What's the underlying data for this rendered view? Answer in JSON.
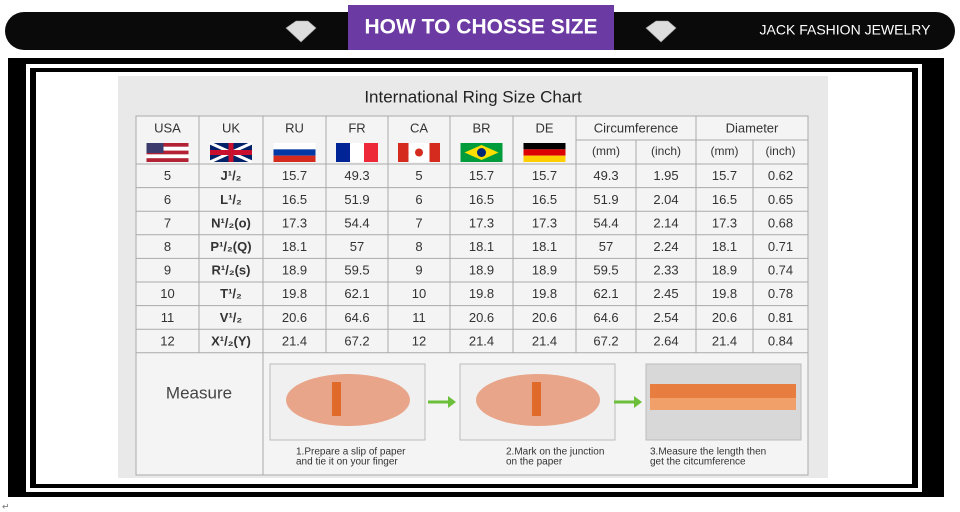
{
  "header": {
    "title": "HOW TO CHOSSE SIZE",
    "brand": "JACK FASHION JEWELRY"
  },
  "chart": {
    "title": "International Ring Size Chart",
    "columns": [
      "USA",
      "UK",
      "RU",
      "FR",
      "CA",
      "BR",
      "DE"
    ],
    "groups": [
      "Circumference",
      "Diameter"
    ],
    "units": [
      "(mm)",
      "(inch)",
      "(mm)",
      "(inch)"
    ],
    "rows": [
      [
        "5",
        "J¹/₂",
        "15.7",
        "49.3",
        "5",
        "15.7",
        "15.7",
        "49.3",
        "1.95",
        "15.7",
        "0.62"
      ],
      [
        "6",
        "L¹/₂",
        "16.5",
        "51.9",
        "6",
        "16.5",
        "16.5",
        "51.9",
        "2.04",
        "16.5",
        "0.65"
      ],
      [
        "7",
        "N¹/₂(o)",
        "17.3",
        "54.4",
        "7",
        "17.3",
        "17.3",
        "54.4",
        "2.14",
        "17.3",
        "0.68"
      ],
      [
        "8",
        "P¹/₂(Q)",
        "18.1",
        "57",
        "8",
        "18.1",
        "18.1",
        "57",
        "2.24",
        "18.1",
        "0.71"
      ],
      [
        "9",
        "R¹/₂(s)",
        "18.9",
        "59.5",
        "9",
        "18.9",
        "18.9",
        "59.5",
        "2.33",
        "18.9",
        "0.74"
      ],
      [
        "10",
        "T¹/₂",
        "19.8",
        "62.1",
        "10",
        "19.8",
        "19.8",
        "62.1",
        "2.45",
        "19.8",
        "0.78"
      ],
      [
        "11",
        "V¹/₂",
        "20.6",
        "64.6",
        "11",
        "20.6",
        "20.6",
        "64.6",
        "2.54",
        "20.6",
        "0.81"
      ],
      [
        "12",
        "X¹/₂(Y)",
        "21.4",
        "67.2",
        "12",
        "21.4",
        "21.4",
        "67.2",
        "2.64",
        "21.4",
        "0.84"
      ]
    ],
    "measure": {
      "label": "Measure",
      "steps": [
        [
          "1.Prepare a slip of paper",
          "and tie it on your finger"
        ],
        [
          "2.Mark on the junction",
          "on the paper"
        ],
        [
          "3.Measure the length then",
          "get the citcumference"
        ]
      ]
    }
  },
  "footer_mark": "↵"
}
